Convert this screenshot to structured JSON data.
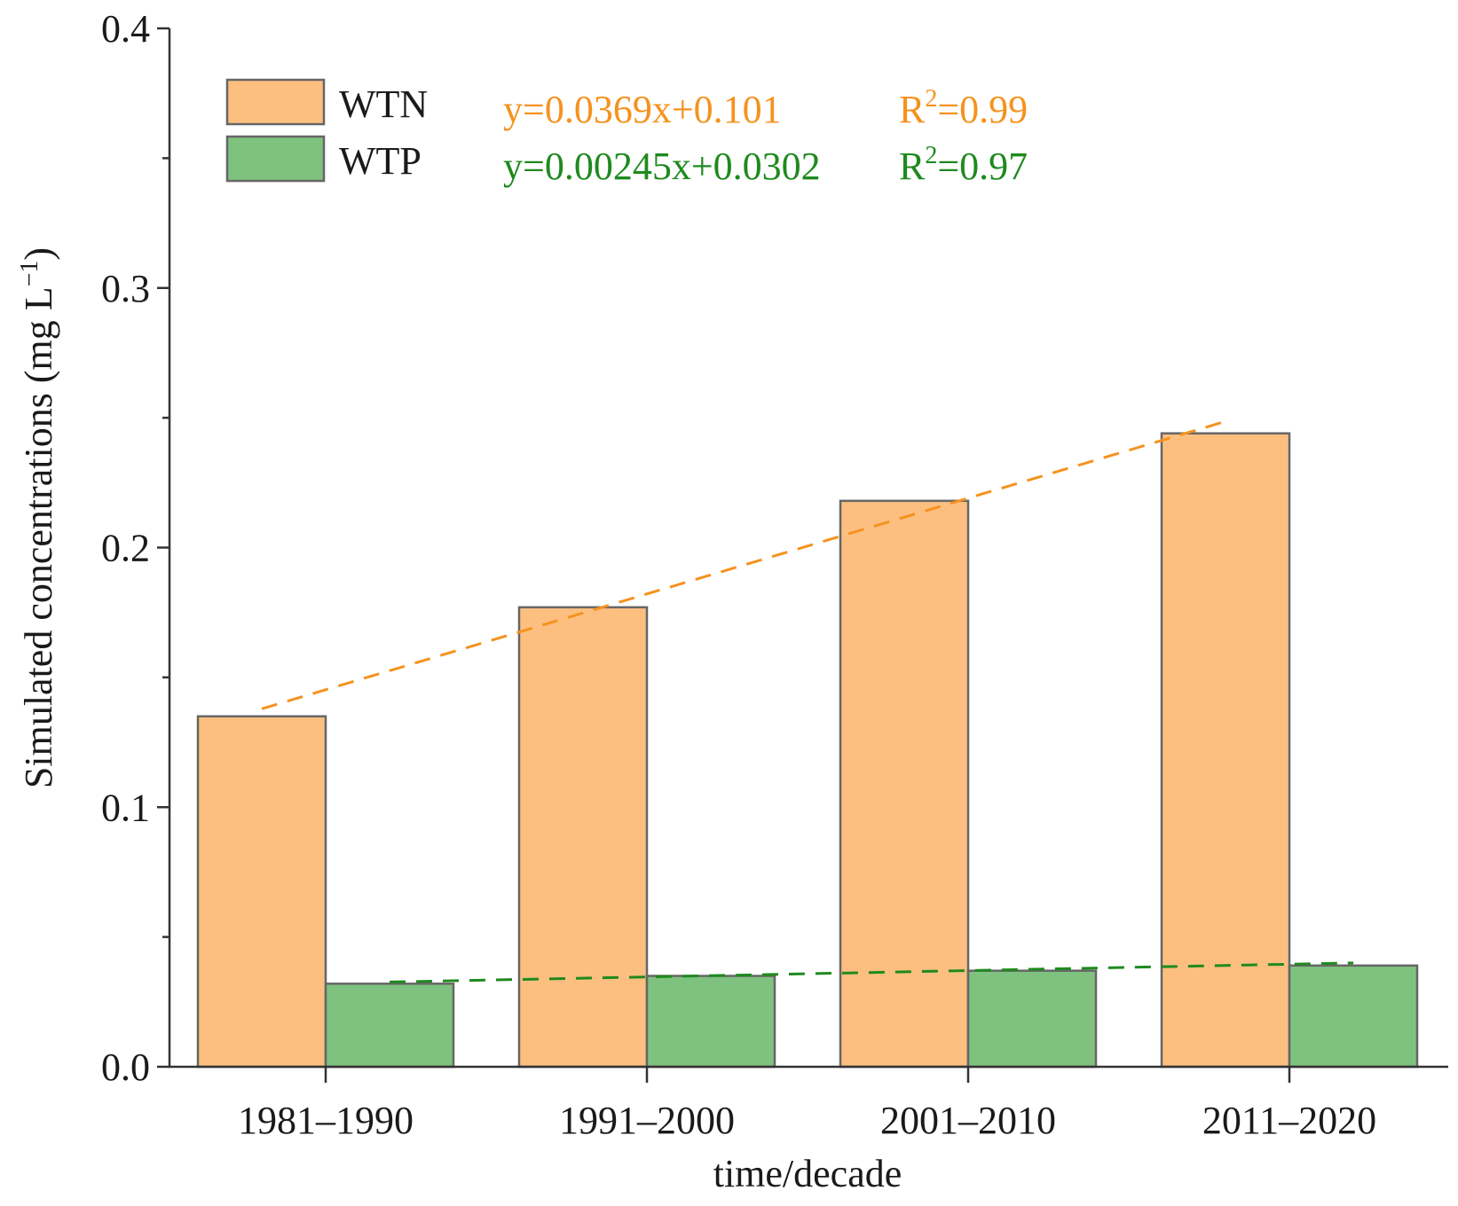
{
  "chart_data": {
    "type": "bar",
    "categories": [
      "1981–1990",
      "1991–2000",
      "2001–2010",
      "2011–2020"
    ],
    "series": [
      {
        "name": "WTN",
        "values": [
          0.135,
          0.177,
          0.218,
          0.244
        ],
        "color": "#fdbf80"
      },
      {
        "name": "WTP",
        "values": [
          0.032,
          0.035,
          0.037,
          0.039
        ],
        "color": "#7fc27f"
      }
    ],
    "trendlines": [
      {
        "series": "WTN",
        "equation": "y=0.0369x+0.101",
        "r2_prefix": "R",
        "r2_sup": "2",
        "r2_value": "=0.99",
        "slope": 0.0369,
        "intercept": 0.101,
        "color": "#f5921e"
      },
      {
        "series": "WTP",
        "equation": "y=0.00245x+0.0302",
        "r2_prefix": "R",
        "r2_sup": "2",
        "r2_value": "=0.97",
        "slope": 0.00245,
        "intercept": 0.0302,
        "color": "#1e8a1e"
      }
    ],
    "xlabel": "time/decade",
    "ylabel_main": "Simulated concentrations (mg L",
    "ylabel_sup": "−1",
    "ylabel_close": ")",
    "ylim": [
      0.0,
      0.4
    ],
    "yticks": [
      "0.0",
      "0.1",
      "0.2",
      "0.3",
      "0.4"
    ],
    "grid": false,
    "legend_position": "top-left"
  }
}
